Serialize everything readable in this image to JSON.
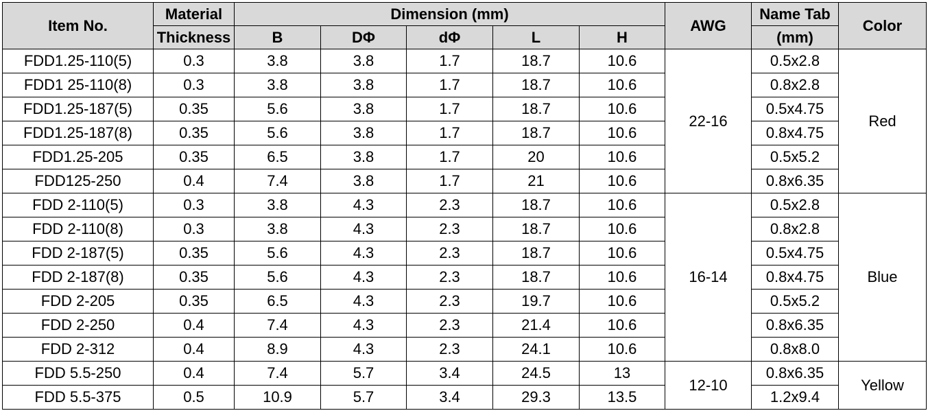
{
  "headers": {
    "item_no": "Item No.",
    "material_line1": "Material",
    "material_line2": "Thickness",
    "dimension": "Dimension (mm)",
    "b": "B",
    "dphi_upper": "DΦ",
    "dphi_lower": "dΦ",
    "l": "L",
    "h": "H",
    "awg": "AWG",
    "nametab_line1": "Name Tab",
    "nametab_line2": "(mm)",
    "color": "Color"
  },
  "rows": [
    {
      "item": "FDD1.25-110(5)",
      "thickness": "0.3",
      "b": "3.8",
      "D": "3.8",
      "d": "1.7",
      "l": "18.7",
      "h": "10.6",
      "tab": "0.5x2.8"
    },
    {
      "item": "FDD1 25-110(8)",
      "thickness": "0.3",
      "b": "3.8",
      "D": "3.8",
      "d": "1.7",
      "l": "18.7",
      "h": "10.6",
      "tab": "0.8x2.8"
    },
    {
      "item": "FDD1.25-187(5)",
      "thickness": "0.35",
      "b": "5.6",
      "D": "3.8",
      "d": "1.7",
      "l": "18.7",
      "h": "10.6",
      "tab": "0.5x4.75"
    },
    {
      "item": "FDD1.25-187(8)",
      "thickness": "0.35",
      "b": "5.6",
      "D": "3.8",
      "d": "1.7",
      "l": "18.7",
      "h": "10.6",
      "tab": "0.8x4.75"
    },
    {
      "item": "FDD1.25-205",
      "thickness": "0.35",
      "b": "6.5",
      "D": "3.8",
      "d": "1.7",
      "l": "20",
      "h": "10.6",
      "tab": "0.5x5.2"
    },
    {
      "item": "FDD125-250",
      "thickness": "0.4",
      "b": "7.4",
      "D": "3.8",
      "d": "1.7",
      "l": "21",
      "h": "10.6",
      "tab": "0.8x6.35"
    },
    {
      "item": "FDD 2-110(5)",
      "thickness": "0.3",
      "b": "3.8",
      "D": "4.3",
      "d": "2.3",
      "l": "18.7",
      "h": "10.6",
      "tab": "0.5x2.8"
    },
    {
      "item": "FDD 2-110(8)",
      "thickness": "0.3",
      "b": "3.8",
      "D": "4.3",
      "d": "2.3",
      "l": "18.7",
      "h": "10.6",
      "tab": "0.8x2.8"
    },
    {
      "item": "FDD 2-187(5)",
      "thickness": "0.35",
      "b": "5.6",
      "D": "4.3",
      "d": "2.3",
      "l": "18.7",
      "h": "10.6",
      "tab": "0.5x4.75"
    },
    {
      "item": "FDD 2-187(8)",
      "thickness": "0.35",
      "b": "5.6",
      "D": "4.3",
      "d": "2.3",
      "l": "18.7",
      "h": "10.6",
      "tab": "0.8x4.75"
    },
    {
      "item": "FDD 2-205",
      "thickness": "0.35",
      "b": "6.5",
      "D": "4.3",
      "d": "2.3",
      "l": "19.7",
      "h": "10.6",
      "tab": "0.5x5.2"
    },
    {
      "item": "FDD 2-250",
      "thickness": "0.4",
      "b": "7.4",
      "D": "4.3",
      "d": "2.3",
      "l": "21.4",
      "h": "10.6",
      "tab": "0.8x6.35"
    },
    {
      "item": "FDD 2-312",
      "thickness": "0.4",
      "b": "8.9",
      "D": "4.3",
      "d": "2.3",
      "l": "24.1",
      "h": "10.6",
      "tab": "0.8x8.0"
    },
    {
      "item": "FDD 5.5-250",
      "thickness": "0.4",
      "b": "7.4",
      "D": "5.7",
      "d": "3.4",
      "l": "24.5",
      "h": "13",
      "tab": "0.8x6.35"
    },
    {
      "item": "FDD 5.5-375",
      "thickness": "0.5",
      "b": "10.9",
      "D": "5.7",
      "d": "3.4",
      "l": "29.3",
      "h": "13.5",
      "tab": "1.2x9.4"
    }
  ],
  "groups": [
    {
      "awg": "22-16",
      "color": "Red"
    },
    {
      "awg": "16-14",
      "color": "Blue"
    },
    {
      "awg": "12-10",
      "color": "Yellow"
    }
  ]
}
